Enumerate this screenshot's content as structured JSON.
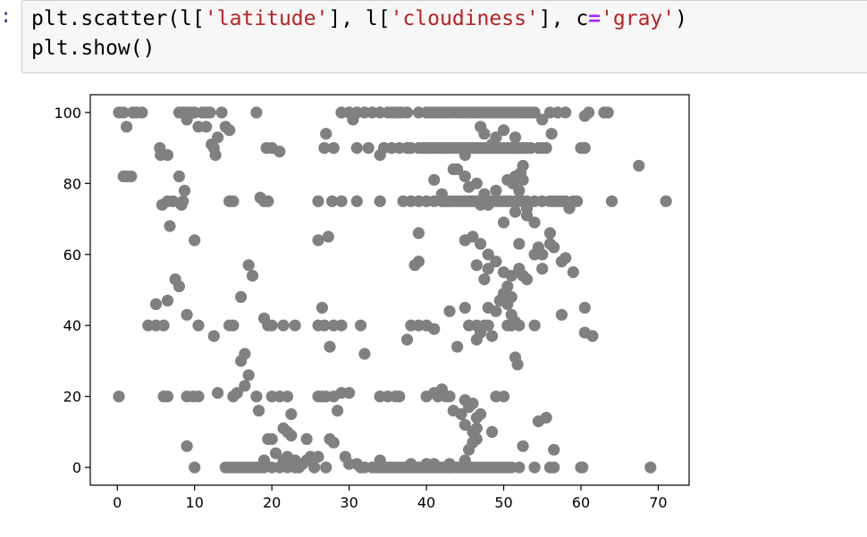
{
  "cell": {
    "prompt": ":",
    "code_line1_parts": [
      "plt.scatter(l[",
      "'latitude'",
      "], l[",
      "'cloudiness'",
      "], c",
      "=",
      "'gray'",
      ")"
    ],
    "code_line2": "plt.show()"
  },
  "chart_data": {
    "type": "scatter",
    "title": "",
    "xlabel": "",
    "ylabel": "",
    "color": "#808080",
    "xlim": [
      -3.5,
      74
    ],
    "ylim": [
      -5,
      105
    ],
    "xticks": [
      "0",
      "10",
      "20",
      "30",
      "40",
      "50",
      "60",
      "70"
    ],
    "yticks": [
      "0",
      "20",
      "40",
      "60",
      "80",
      "100"
    ],
    "grid": false,
    "points": [
      [
        0.2,
        100
      ],
      [
        0.8,
        100
      ],
      [
        1.2,
        96
      ],
      [
        2,
        100
      ],
      [
        2.5,
        100
      ],
      [
        3.2,
        100
      ],
      [
        0.8,
        82
      ],
      [
        1.2,
        82
      ],
      [
        1.8,
        82
      ],
      [
        5.5,
        90
      ],
      [
        5.6,
        88
      ],
      [
        6.5,
        88
      ],
      [
        5.8,
        74
      ],
      [
        6.5,
        75
      ],
      [
        7.2,
        75
      ],
      [
        6.8,
        68
      ],
      [
        8,
        82
      ],
      [
        8.5,
        75
      ],
      [
        8.7,
        78
      ],
      [
        8.3,
        74
      ],
      [
        10,
        64
      ],
      [
        8,
        100
      ],
      [
        8.5,
        100
      ],
      [
        9,
        100
      ],
      [
        9,
        98
      ],
      [
        9.5,
        100
      ],
      [
        10,
        100
      ],
      [
        10.5,
        96
      ],
      [
        11,
        100
      ],
      [
        11.5,
        96
      ],
      [
        11.5,
        100
      ],
      [
        12,
        100
      ],
      [
        12.5,
        90
      ],
      [
        12.2,
        91
      ],
      [
        12.7,
        88
      ],
      [
        13,
        93
      ],
      [
        13.5,
        100
      ],
      [
        14,
        96
      ],
      [
        14.5,
        95
      ],
      [
        14.5,
        75
      ],
      [
        15,
        75
      ],
      [
        18,
        100
      ],
      [
        18.5,
        76
      ],
      [
        19,
        75
      ],
      [
        19.5,
        75
      ],
      [
        19.3,
        90
      ],
      [
        20,
        90
      ],
      [
        21,
        89
      ],
      [
        0.2,
        20
      ],
      [
        6,
        20
      ],
      [
        6.5,
        20
      ],
      [
        9,
        20
      ],
      [
        9.8,
        20
      ],
      [
        10.5,
        20
      ],
      [
        13,
        21
      ],
      [
        15,
        20
      ],
      [
        15.5,
        21
      ],
      [
        16.5,
        23
      ],
      [
        17,
        26
      ],
      [
        16.5,
        32
      ],
      [
        16,
        30
      ],
      [
        18,
        20
      ],
      [
        18.3,
        16
      ],
      [
        20,
        20
      ],
      [
        21,
        20
      ],
      [
        22,
        20
      ],
      [
        22.5,
        15
      ],
      [
        21.5,
        11
      ],
      [
        22,
        10
      ],
      [
        22.5,
        9
      ],
      [
        24.5,
        8
      ],
      [
        26,
        20
      ],
      [
        26.5,
        20
      ],
      [
        27,
        20
      ],
      [
        28,
        20
      ],
      [
        28.5,
        16
      ],
      [
        29,
        21
      ],
      [
        30,
        21
      ],
      [
        7.5,
        53
      ],
      [
        8,
        51
      ],
      [
        6.5,
        47
      ],
      [
        5,
        46
      ],
      [
        4,
        40
      ],
      [
        5,
        40
      ],
      [
        6,
        40
      ],
      [
        9,
        43
      ],
      [
        10.5,
        40
      ],
      [
        12.5,
        37
      ],
      [
        14.5,
        40
      ],
      [
        15,
        40
      ],
      [
        16,
        48
      ],
      [
        17,
        57
      ],
      [
        17.5,
        54
      ],
      [
        19,
        42
      ],
      [
        19.5,
        40
      ],
      [
        20,
        40
      ],
      [
        21.5,
        40
      ],
      [
        23,
        40
      ],
      [
        26,
        40
      ],
      [
        26.5,
        45
      ],
      [
        26.8,
        40
      ],
      [
        27.5,
        34
      ],
      [
        28,
        40
      ],
      [
        29,
        40
      ],
      [
        31.5,
        40
      ],
      [
        32,
        32
      ],
      [
        26,
        64
      ],
      [
        27.3,
        65
      ],
      [
        26.8,
        90
      ],
      [
        27,
        94
      ],
      [
        28,
        90
      ],
      [
        27.8,
        75
      ],
      [
        26,
        75
      ],
      [
        29,
        75
      ],
      [
        31,
        75
      ],
      [
        34,
        75
      ],
      [
        31,
        90
      ],
      [
        32.5,
        90
      ],
      [
        34,
        88
      ],
      [
        34.5,
        90
      ],
      [
        35.5,
        90
      ],
      [
        29,
        100
      ],
      [
        30,
        100
      ],
      [
        30.5,
        98
      ],
      [
        31,
        100
      ],
      [
        32,
        100
      ],
      [
        33,
        100
      ],
      [
        34,
        100
      ],
      [
        35,
        100
      ],
      [
        35.5,
        100
      ],
      [
        36,
        100
      ],
      [
        36.5,
        100
      ],
      [
        36.8,
        100
      ],
      [
        37.5,
        100
      ],
      [
        39,
        100
      ],
      [
        40,
        100
      ],
      [
        40.5,
        100
      ],
      [
        41,
        100
      ],
      [
        41.5,
        100
      ],
      [
        42,
        100
      ],
      [
        42.5,
        100
      ],
      [
        43,
        100
      ],
      [
        43.5,
        100
      ],
      [
        44,
        100
      ],
      [
        44.5,
        100
      ],
      [
        45,
        100
      ],
      [
        45.5,
        100
      ],
      [
        46,
        100
      ],
      [
        46.5,
        100
      ],
      [
        47,
        100
      ],
      [
        47.5,
        100
      ],
      [
        48,
        100
      ],
      [
        48.5,
        100
      ],
      [
        49,
        100
      ],
      [
        49.5,
        100
      ],
      [
        50,
        100
      ],
      [
        50.5,
        100
      ],
      [
        51,
        100
      ],
      [
        51.5,
        100
      ],
      [
        52,
        100
      ],
      [
        52.5,
        100
      ],
      [
        53,
        100
      ],
      [
        53.5,
        100
      ],
      [
        54,
        100
      ],
      [
        55,
        98
      ],
      [
        56,
        100
      ],
      [
        57,
        100
      ],
      [
        58,
        100
      ],
      [
        61,
        100
      ],
      [
        63,
        100
      ],
      [
        63.5,
        100
      ],
      [
        60.5,
        99
      ],
      [
        36.5,
        90
      ],
      [
        37.5,
        90
      ],
      [
        38,
        90
      ],
      [
        39,
        90
      ],
      [
        39.5,
        90
      ],
      [
        40,
        90
      ],
      [
        40.5,
        90
      ],
      [
        41,
        90
      ],
      [
        41.5,
        90
      ],
      [
        42,
        90
      ],
      [
        42.5,
        90
      ],
      [
        43,
        90
      ],
      [
        43.5,
        90
      ],
      [
        44,
        90
      ],
      [
        44.5,
        90
      ],
      [
        45,
        90
      ],
      [
        45.5,
        90
      ],
      [
        46,
        90
      ],
      [
        46.5,
        90
      ],
      [
        47,
        90
      ],
      [
        47.5,
        90
      ],
      [
        48,
        90
      ],
      [
        48.5,
        90
      ],
      [
        49,
        90
      ],
      [
        49.5,
        90
      ],
      [
        50,
        90
      ],
      [
        50.5,
        90
      ],
      [
        51,
        90
      ],
      [
        51.5,
        90
      ],
      [
        52,
        90
      ],
      [
        52.5,
        90
      ],
      [
        53,
        90
      ],
      [
        53.5,
        90
      ],
      [
        54.5,
        90
      ],
      [
        55,
        90
      ],
      [
        55.5,
        90
      ],
      [
        56.2,
        94
      ],
      [
        60,
        90
      ],
      [
        60.5,
        90
      ],
      [
        45,
        88
      ],
      [
        47,
        96
      ],
      [
        47.5,
        94
      ],
      [
        48.5,
        91
      ],
      [
        49,
        93
      ],
      [
        50,
        95
      ],
      [
        51.5,
        93
      ],
      [
        51.2,
        90
      ],
      [
        52.5,
        85
      ],
      [
        52.2,
        83
      ],
      [
        46.5,
        75
      ],
      [
        47,
        74
      ],
      [
        48,
        74
      ],
      [
        37,
        75
      ],
      [
        38,
        75
      ],
      [
        39,
        75
      ],
      [
        40,
        75
      ],
      [
        41,
        75
      ],
      [
        42,
        75
      ],
      [
        42.5,
        75
      ],
      [
        43,
        75
      ],
      [
        43.5,
        75
      ],
      [
        44,
        75
      ],
      [
        44.5,
        75
      ],
      [
        45,
        75
      ],
      [
        45.5,
        75
      ],
      [
        46,
        75
      ],
      [
        46.5,
        75
      ],
      [
        47,
        75
      ],
      [
        47.5,
        75
      ],
      [
        48,
        75
      ],
      [
        48.5,
        75
      ],
      [
        49,
        75
      ],
      [
        49.5,
        75
      ],
      [
        50,
        75
      ],
      [
        50.5,
        75
      ],
      [
        51,
        75
      ],
      [
        51.5,
        75
      ],
      [
        52,
        75
      ],
      [
        52.5,
        75
      ],
      [
        53,
        75
      ],
      [
        54,
        75
      ],
      [
        55,
        75
      ],
      [
        56,
        75
      ],
      [
        56.5,
        75
      ],
      [
        57,
        75
      ],
      [
        57.5,
        75
      ],
      [
        58,
        75
      ],
      [
        59,
        75
      ],
      [
        59.5,
        75
      ],
      [
        58.5,
        73
      ],
      [
        64,
        75
      ],
      [
        71,
        75
      ],
      [
        67.5,
        85
      ],
      [
        41,
        81
      ],
      [
        42,
        77
      ],
      [
        42.5,
        75
      ],
      [
        43.5,
        84
      ],
      [
        44,
        84
      ],
      [
        45,
        82
      ],
      [
        45.5,
        79
      ],
      [
        46.5,
        80
      ],
      [
        47.5,
        77
      ],
      [
        49,
        78
      ],
      [
        50.5,
        81
      ],
      [
        51.5,
        82
      ],
      [
        51.2,
        80
      ],
      [
        52.5,
        81
      ],
      [
        52,
        78
      ],
      [
        52.5,
        75
      ],
      [
        53,
        73
      ],
      [
        51.5,
        72
      ],
      [
        50,
        69
      ],
      [
        53,
        71
      ],
      [
        54,
        69
      ],
      [
        39,
        66
      ],
      [
        38.5,
        57
      ],
      [
        39,
        58
      ],
      [
        45,
        64
      ],
      [
        46,
        65
      ],
      [
        47,
        63
      ],
      [
        48,
        60
      ],
      [
        49,
        58
      ],
      [
        50,
        55
      ],
      [
        51,
        54
      ],
      [
        48,
        56
      ],
      [
        47.5,
        53
      ],
      [
        46.5,
        57
      ],
      [
        52,
        63
      ],
      [
        52,
        56
      ],
      [
        52.5,
        54
      ],
      [
        53,
        53
      ],
      [
        56,
        66
      ],
      [
        56,
        63
      ],
      [
        56.5,
        62
      ],
      [
        55,
        60
      ],
      [
        54,
        60
      ],
      [
        55,
        56
      ],
      [
        54.5,
        62
      ],
      [
        57.5,
        58
      ],
      [
        58,
        59
      ],
      [
        59,
        55
      ],
      [
        37.5,
        36
      ],
      [
        38,
        40
      ],
      [
        39,
        40
      ],
      [
        40,
        40
      ],
      [
        41,
        39
      ],
      [
        43,
        44
      ],
      [
        44,
        34
      ],
      [
        45,
        45
      ],
      [
        45.5,
        40
      ],
      [
        46.5,
        40
      ],
      [
        46.5,
        36
      ],
      [
        47,
        38
      ],
      [
        47.5,
        40
      ],
      [
        48,
        40
      ],
      [
        48.5,
        37
      ],
      [
        48,
        45
      ],
      [
        49,
        44
      ],
      [
        49.5,
        47
      ],
      [
        50,
        49
      ],
      [
        50.5,
        51
      ],
      [
        51,
        48
      ],
      [
        50.5,
        46
      ],
      [
        51,
        43
      ],
      [
        51.5,
        41
      ],
      [
        50.5,
        40
      ],
      [
        51,
        40
      ],
      [
        51.5,
        31
      ],
      [
        51.8,
        29
      ],
      [
        52,
        40
      ],
      [
        54,
        40
      ],
      [
        57.5,
        43
      ],
      [
        60.5,
        45
      ],
      [
        60.5,
        38
      ],
      [
        61.5,
        37
      ],
      [
        34,
        20
      ],
      [
        35,
        20
      ],
      [
        36,
        20
      ],
      [
        36.5,
        20
      ],
      [
        40,
        20
      ],
      [
        41,
        21
      ],
      [
        41.5,
        20
      ],
      [
        42,
        22
      ],
      [
        42.5,
        20
      ],
      [
        43,
        20
      ],
      [
        43.5,
        16
      ],
      [
        44.5,
        15
      ],
      [
        45,
        19
      ],
      [
        45,
        12
      ],
      [
        45.5,
        17
      ],
      [
        46,
        18
      ],
      [
        46.5,
        14
      ],
      [
        47,
        15
      ],
      [
        46.5,
        11
      ],
      [
        46,
        10
      ],
      [
        46.5,
        8
      ],
      [
        46,
        7
      ],
      [
        45.5,
        5
      ],
      [
        48.5,
        10
      ],
      [
        49,
        20
      ],
      [
        50,
        20
      ],
      [
        52.5,
        6
      ],
      [
        54.5,
        13
      ],
      [
        55.5,
        14
      ],
      [
        56.5,
        5
      ],
      [
        9,
        6
      ],
      [
        10,
        0
      ],
      [
        14,
        0
      ],
      [
        14.5,
        0
      ],
      [
        15,
        0
      ],
      [
        15.5,
        0
      ],
      [
        16,
        0
      ],
      [
        16.5,
        0
      ],
      [
        17,
        0
      ],
      [
        17.5,
        0
      ],
      [
        18,
        0
      ],
      [
        18.5,
        0
      ],
      [
        19,
        0
      ],
      [
        19,
        2
      ],
      [
        19.5,
        8
      ],
      [
        20,
        8
      ],
      [
        20.5,
        4
      ],
      [
        20,
        0
      ],
      [
        21,
        0
      ],
      [
        21.5,
        2
      ],
      [
        22,
        0
      ],
      [
        22,
        3
      ],
      [
        23,
        0
      ],
      [
        23,
        2
      ],
      [
        23.5,
        0
      ],
      [
        24,
        1
      ],
      [
        24.5,
        2
      ],
      [
        25,
        3
      ],
      [
        25.5,
        0
      ],
      [
        26,
        3
      ],
      [
        27,
        0
      ],
      [
        27.5,
        8
      ],
      [
        28,
        7
      ],
      [
        29.5,
        3
      ],
      [
        30,
        1
      ],
      [
        31,
        1
      ],
      [
        31.5,
        0
      ],
      [
        32,
        0
      ],
      [
        33,
        0
      ],
      [
        33.5,
        0
      ],
      [
        34,
        0
      ],
      [
        34.5,
        0
      ],
      [
        35,
        0
      ],
      [
        35.5,
        0
      ],
      [
        36,
        0
      ],
      [
        36.5,
        0
      ],
      [
        37,
        0
      ],
      [
        37.5,
        0
      ],
      [
        38,
        0
      ],
      [
        38.5,
        0
      ],
      [
        39,
        0
      ],
      [
        39.5,
        0
      ],
      [
        40,
        0
      ],
      [
        40.5,
        0
      ],
      [
        41,
        0
      ],
      [
        41.5,
        0
      ],
      [
        42,
        0
      ],
      [
        42.5,
        0
      ],
      [
        43,
        0
      ],
      [
        43.5,
        0
      ],
      [
        44,
        0
      ],
      [
        44.5,
        0
      ],
      [
        45,
        0
      ],
      [
        45.5,
        0
      ],
      [
        46,
        0
      ],
      [
        46.5,
        0
      ],
      [
        47,
        0
      ],
      [
        47.5,
        0
      ],
      [
        48,
        0
      ],
      [
        48.5,
        0
      ],
      [
        49,
        0
      ],
      [
        49.5,
        0
      ],
      [
        50,
        0
      ],
      [
        50.5,
        0
      ],
      [
        51,
        0
      ],
      [
        52,
        0
      ],
      [
        54,
        0
      ],
      [
        56,
        0
      ],
      [
        56.5,
        0
      ],
      [
        60,
        0
      ],
      [
        60.2,
        0
      ],
      [
        69,
        0
      ],
      [
        34,
        2
      ],
      [
        38,
        1
      ],
      [
        40,
        1
      ],
      [
        41,
        1
      ],
      [
        43,
        1
      ],
      [
        45,
        2
      ]
    ]
  }
}
